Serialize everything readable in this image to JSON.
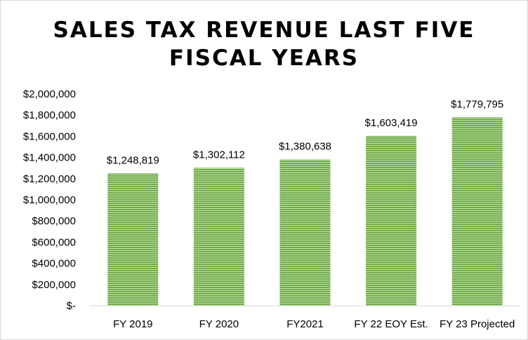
{
  "chart_data": {
    "type": "bar",
    "title_lines": [
      "SALES TAX REVENUE LAST FIVE",
      "FISCAL YEARS"
    ],
    "categories": [
      "FY 2019",
      "FY 2020",
      "FY2021",
      "FY 22 EOY Est.",
      "FY 23 Projected"
    ],
    "values": [
      1248819,
      1302112,
      1380638,
      1603419,
      1779795
    ],
    "value_labels": [
      "$1,248,819",
      "$1,302,112",
      "$1,380,638",
      "$1,603,419",
      "$1,779,795"
    ],
    "y_tick_labels": [
      "$-",
      "$200,000",
      "$400,000",
      "$600,000",
      "$800,000",
      "$1,000,000",
      "$1,200,000",
      "$1,400,000",
      "$1,600,000",
      "$1,800,000",
      "$2,000,000"
    ],
    "ylim": [
      0,
      2000000
    ],
    "y_step": 200000,
    "grid": false,
    "legend": "none",
    "bar_color": "#70ad47",
    "bar_stripe_color": "#c5e0b3",
    "axis_color": "#d9d9d9"
  }
}
